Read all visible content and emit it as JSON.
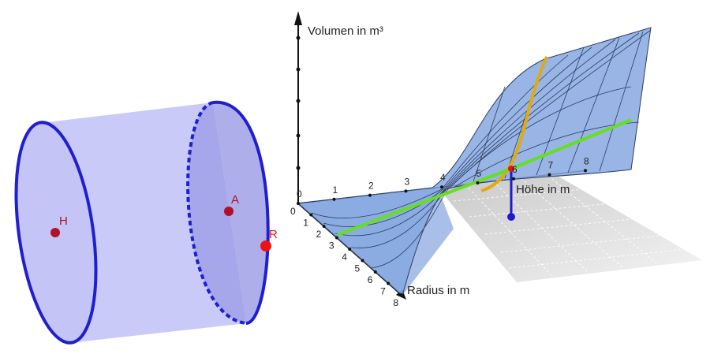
{
  "cylinder": {
    "points": {
      "h": "H",
      "a": "A",
      "r": "R"
    },
    "colors": {
      "fill": "#c4c4f7",
      "outline": "#1f1fcf",
      "point": "#b0102a",
      "point_r": "#ee1111"
    }
  },
  "plot": {
    "axes": {
      "z_label": "Volumen in m³",
      "x_label": "Radius in m",
      "y_label": "Höhe in m"
    },
    "radius_ticks": [
      "0",
      "1",
      "2",
      "3",
      "4",
      "5",
      "6",
      "7",
      "8"
    ],
    "height_ticks": [
      "0",
      "1",
      "2",
      "3",
      "4",
      "5",
      "6",
      "7",
      "8"
    ],
    "colors": {
      "surface": "#86a8e0",
      "surface_line": "#2b3d63",
      "green_curve": "#66e01e",
      "orange_curve": "#e0aa10",
      "vertical_segment": "#1c1ccc",
      "ground": "#d8d8d8"
    }
  }
}
